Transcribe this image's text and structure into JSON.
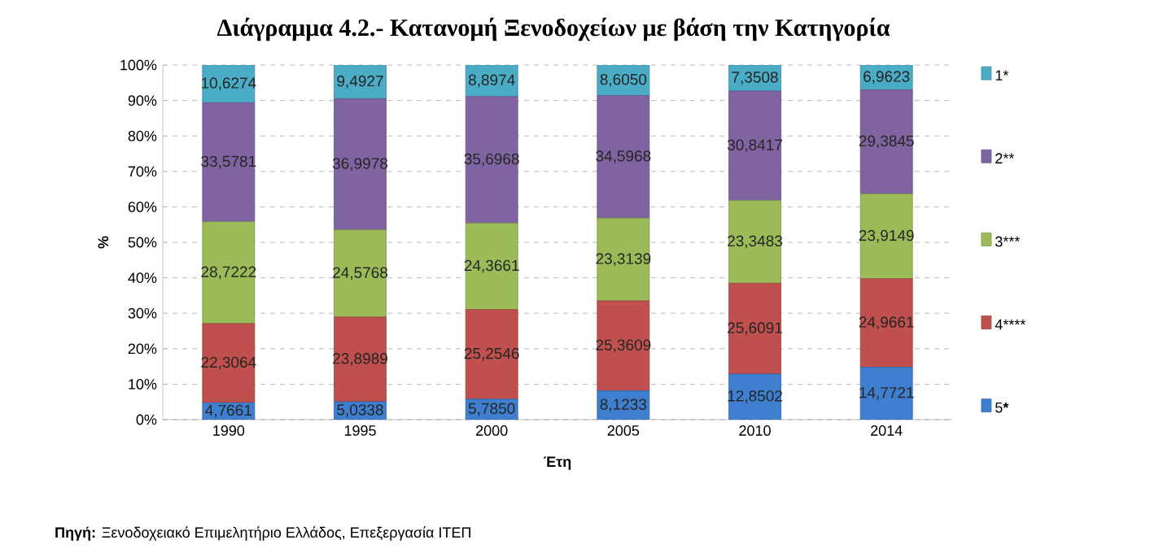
{
  "chart_data": {
    "type": "bar",
    "stacked": true,
    "title": "Διάγραμμα 4.2.- Κατανομή Ξενοδοχείων με βάση την Κατηγορία",
    "xlabel": "Έτη",
    "ylabel": "%",
    "categories": [
      "1990",
      "1995",
      "2000",
      "2005",
      "2010",
      "2014"
    ],
    "series": [
      {
        "name": "5*****",
        "color": "#3f7fd0",
        "values": [
          4.7661,
          5.0338,
          5.785,
          8.1233,
          12.8502,
          14.7721
        ],
        "value_labels": [
          "4,7661",
          "5,0338",
          "5,7850",
          "8,1233",
          "12,8502",
          "14,7721"
        ]
      },
      {
        "name": "4****",
        "color": "#c0504d",
        "values": [
          22.3064,
          23.8989,
          25.2546,
          25.3609,
          25.6091,
          24.9661
        ],
        "value_labels": [
          "22,3064",
          "23,8989",
          "25,2546",
          "25,3609",
          "25,6091",
          "24,9661"
        ]
      },
      {
        "name": "3***",
        "color": "#9bbb59",
        "values": [
          28.7222,
          24.5768,
          24.3661,
          23.3139,
          23.3483,
          23.9149
        ],
        "value_labels": [
          "28,7222",
          "24,5768",
          "24,3661",
          "23,3139",
          "23,3483",
          "23,9149"
        ]
      },
      {
        "name": "2**",
        "color": "#8064a2",
        "values": [
          33.5781,
          36.9978,
          35.6968,
          34.5968,
          30.8417,
          29.3845
        ],
        "value_labels": [
          "33,5781",
          "36,9978",
          "35,6968",
          "34,5968",
          "30,8417",
          "29,3845"
        ]
      },
      {
        "name": "1*",
        "color": "#4bacc6",
        "values": [
          10.6274,
          9.4927,
          8.8974,
          8.605,
          7.3508,
          6.9623
        ],
        "value_labels": [
          "10,6274",
          "9,4927",
          "8,8974",
          "8,6050",
          "7,3508",
          "6,9623"
        ]
      }
    ],
    "ylim": [
      0,
      100
    ],
    "yticks": [
      {
        "value": 0,
        "label": "0%"
      },
      {
        "value": 10,
        "label": "10%"
      },
      {
        "value": 20,
        "label": "20%"
      },
      {
        "value": 30,
        "label": "30%"
      },
      {
        "value": 40,
        "label": "40%"
      },
      {
        "value": 50,
        "label": "50%"
      },
      {
        "value": 60,
        "label": "60%"
      },
      {
        "value": 70,
        "label": "70%"
      },
      {
        "value": 80,
        "label": "80%"
      },
      {
        "value": 90,
        "label": "90%"
      },
      {
        "value": 100,
        "label": "100%"
      }
    ],
    "grid": "y",
    "legend": "right",
    "annotations": [
      "**Πηγή:** Ξενοδοχειακό Επιμελητήριο Ελλάδος, Επεξεργασία ΙΤΕΠ"
    ]
  }
}
